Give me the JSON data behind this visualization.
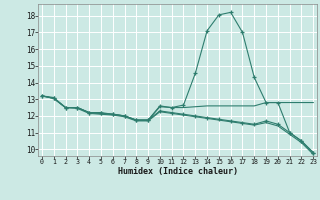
{
  "xlabel": "Humidex (Indice chaleur)",
  "bg_color": "#cce9e4",
  "grid_color": "#ffffff",
  "line_color": "#2e7d6e",
  "x_ticks": [
    0,
    1,
    2,
    3,
    4,
    5,
    6,
    7,
    8,
    9,
    10,
    11,
    12,
    13,
    14,
    15,
    16,
    17,
    18,
    19,
    20,
    21,
    22,
    23
  ],
  "y_ticks": [
    10,
    11,
    12,
    13,
    14,
    15,
    16,
    17,
    18
  ],
  "xlim": [
    -0.3,
    23.3
  ],
  "ylim": [
    9.6,
    18.7
  ],
  "line1_x": [
    0,
    1,
    2,
    3,
    4,
    5,
    6,
    7,
    8,
    9,
    10,
    11,
    12,
    13,
    14,
    15,
    16,
    17,
    18,
    19,
    20,
    21,
    22,
    23
  ],
  "line1_y": [
    13.2,
    13.1,
    12.5,
    12.5,
    12.2,
    12.2,
    12.1,
    12.0,
    11.75,
    11.75,
    12.6,
    12.5,
    12.65,
    14.55,
    17.1,
    18.05,
    18.2,
    17.0,
    14.3,
    12.8,
    12.8,
    11.0,
    10.5,
    9.8
  ],
  "line2_x": [
    0,
    1,
    2,
    3,
    4,
    5,
    6,
    7,
    8,
    9,
    10,
    11,
    12,
    13,
    14,
    15,
    16,
    17,
    18,
    19,
    20,
    21,
    22,
    23
  ],
  "line2_y": [
    13.2,
    13.05,
    12.5,
    12.5,
    12.2,
    12.15,
    12.1,
    12.0,
    11.75,
    11.75,
    12.55,
    12.5,
    12.5,
    12.55,
    12.6,
    12.6,
    12.6,
    12.6,
    12.6,
    12.8,
    12.8,
    12.8,
    12.8,
    12.8
  ],
  "line3_x": [
    0,
    1,
    2,
    3,
    4,
    5,
    6,
    7,
    8,
    9,
    10,
    11,
    12,
    13,
    14,
    15,
    16,
    17,
    18,
    19,
    20,
    21,
    22,
    23
  ],
  "line3_y": [
    13.2,
    13.05,
    12.5,
    12.5,
    12.2,
    12.15,
    12.1,
    12.0,
    11.75,
    11.75,
    12.3,
    12.2,
    12.1,
    12.0,
    11.9,
    11.8,
    11.7,
    11.6,
    11.5,
    11.7,
    11.5,
    11.0,
    10.5,
    9.8
  ],
  "line4_x": [
    0,
    1,
    2,
    3,
    4,
    5,
    6,
    7,
    8,
    9,
    10,
    11,
    12,
    13,
    14,
    15,
    16,
    17,
    18,
    19,
    20,
    21,
    22,
    23
  ],
  "line4_y": [
    13.2,
    13.05,
    12.5,
    12.45,
    12.15,
    12.1,
    12.05,
    11.95,
    11.7,
    11.7,
    12.25,
    12.15,
    12.05,
    11.95,
    11.85,
    11.75,
    11.65,
    11.55,
    11.45,
    11.6,
    11.4,
    10.9,
    10.4,
    9.7
  ]
}
